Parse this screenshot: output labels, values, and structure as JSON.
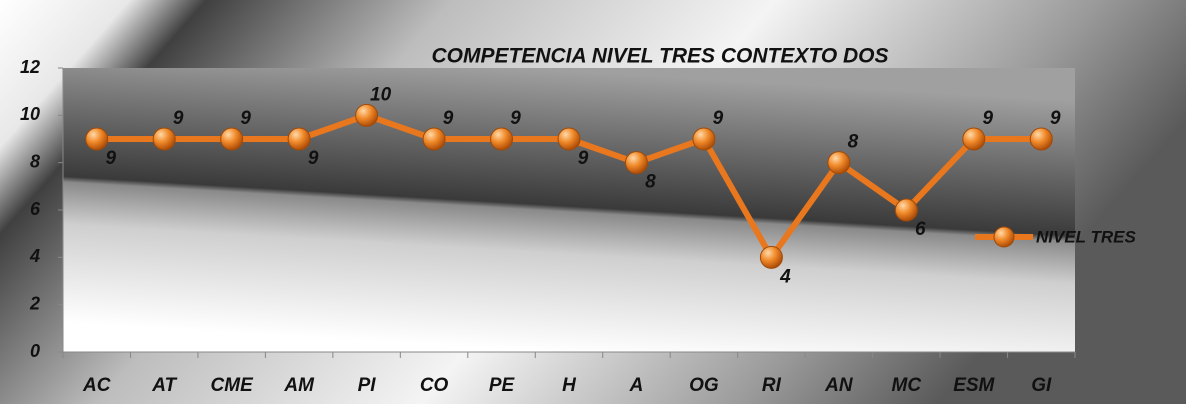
{
  "chart_data": {
    "type": "line",
    "title": "COMPETENCIA NIVEL TRES  CONTEXTO DOS",
    "categories": [
      "AC",
      "AT",
      "CME",
      "AM",
      "PI",
      "CO",
      "PE",
      "H",
      "A",
      "OG",
      "RI",
      "AN",
      "MC",
      "ESM",
      "GI"
    ],
    "series": [
      {
        "name": "NIVEL TRES",
        "color": "#e8771e",
        "values": [
          9,
          9,
          9,
          9,
          10,
          9,
          9,
          9,
          8,
          9,
          4,
          8,
          6,
          9,
          9
        ]
      }
    ],
    "ylim": [
      0,
      12
    ],
    "yticks": [
      0,
      2,
      4,
      6,
      8,
      10,
      12
    ],
    "legend": "right"
  }
}
